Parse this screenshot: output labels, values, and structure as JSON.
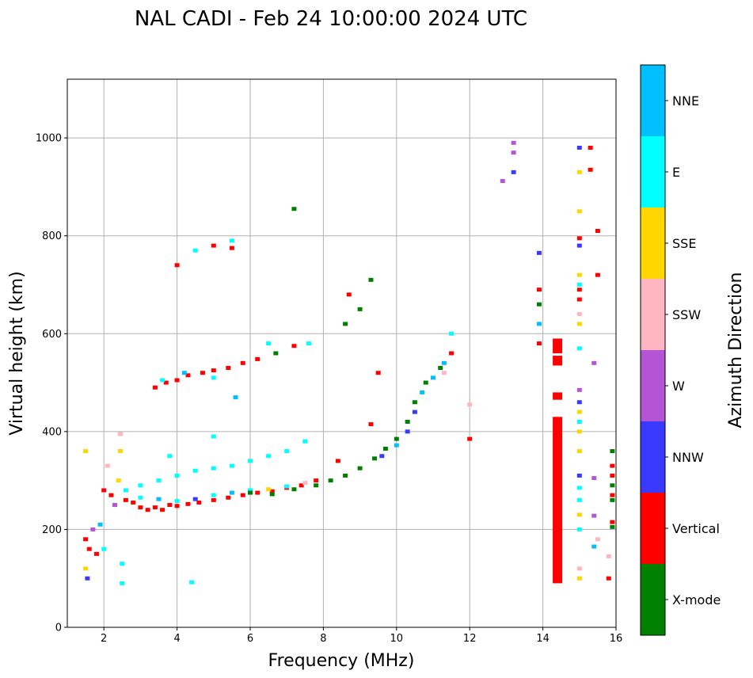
{
  "chart_data": {
    "type": "scatter",
    "title": "NAL CADI - Feb 24 10:00:00 2024 UTC",
    "xlabel": "Frequency (MHz)",
    "ylabel": "Virtual height (km)",
    "xlim": [
      1,
      16
    ],
    "ylim": [
      0,
      1120
    ],
    "xticks": [
      2,
      4,
      6,
      8,
      10,
      12,
      14,
      16
    ],
    "yticks": [
      0,
      200,
      400,
      600,
      800,
      1000
    ],
    "grid": true,
    "colorbar": {
      "label": "Azimuth Direction",
      "categories": [
        {
          "name": "X-mode",
          "color": "#008000"
        },
        {
          "name": "Vertical",
          "color": "#ff0000"
        },
        {
          "name": "NNW",
          "color": "#3a3aff"
        },
        {
          "name": "W",
          "color": "#b455d6"
        },
        {
          "name": "SSW",
          "color": "#ffb6c1"
        },
        {
          "name": "SSE",
          "color": "#ffd700"
        },
        {
          "name": "E",
          "color": "#00ffff"
        },
        {
          "name": "NNE",
          "color": "#00bfff"
        }
      ]
    },
    "points": [
      [
        1.5,
        180,
        "Vertical"
      ],
      [
        1.6,
        160,
        "Vertical"
      ],
      [
        1.5,
        120,
        "SSE"
      ],
      [
        1.5,
        360,
        "SSE"
      ],
      [
        1.55,
        100,
        "NNW"
      ],
      [
        1.7,
        200,
        "W"
      ],
      [
        1.8,
        150,
        "Vertical"
      ],
      [
        1.9,
        210,
        "NNE"
      ],
      [
        2.0,
        160,
        "E"
      ],
      [
        2.0,
        280,
        "Vertical"
      ],
      [
        2.1,
        330,
        "SSW"
      ],
      [
        2.2,
        270,
        "Vertical"
      ],
      [
        2.3,
        250,
        "W"
      ],
      [
        2.4,
        300,
        "SSE"
      ],
      [
        2.45,
        360,
        "SSE"
      ],
      [
        2.45,
        395,
        "SSW"
      ],
      [
        2.5,
        130,
        "E"
      ],
      [
        2.5,
        90,
        "E"
      ],
      [
        2.6,
        260,
        "Vertical"
      ],
      [
        2.8,
        255,
        "Vertical"
      ],
      [
        3.0,
        245,
        "Vertical"
      ],
      [
        3.2,
        240,
        "Vertical"
      ],
      [
        3.4,
        245,
        "Vertical"
      ],
      [
        3.6,
        240,
        "Vertical"
      ],
      [
        3.8,
        250,
        "Vertical"
      ],
      [
        4.0,
        248,
        "Vertical"
      ],
      [
        4.3,
        252,
        "Vertical"
      ],
      [
        4.6,
        255,
        "Vertical"
      ],
      [
        5.0,
        260,
        "Vertical"
      ],
      [
        5.4,
        265,
        "Vertical"
      ],
      [
        5.8,
        270,
        "Vertical"
      ],
      [
        6.2,
        275,
        "Vertical"
      ],
      [
        6.6,
        278,
        "Vertical"
      ],
      [
        7.0,
        285,
        "Vertical"
      ],
      [
        7.4,
        290,
        "Vertical"
      ],
      [
        7.8,
        300,
        "Vertical"
      ],
      [
        8.4,
        340,
        "Vertical"
      ],
      [
        3.0,
        265,
        "E"
      ],
      [
        3.5,
        262,
        "NNE"
      ],
      [
        4.0,
        258,
        "E"
      ],
      [
        4.5,
        262,
        "NNW"
      ],
      [
        5.0,
        270,
        "E"
      ],
      [
        5.5,
        275,
        "NNE"
      ],
      [
        6.0,
        280,
        "E"
      ],
      [
        6.5,
        282,
        "SSE"
      ],
      [
        7.0,
        288,
        "E"
      ],
      [
        7.5,
        295,
        "SSW"
      ],
      [
        6.0,
        275,
        "X-mode"
      ],
      [
        6.6,
        272,
        "X-mode"
      ],
      [
        7.2,
        282,
        "X-mode"
      ],
      [
        7.8,
        290,
        "X-mode"
      ],
      [
        8.2,
        300,
        "X-mode"
      ],
      [
        8.6,
        310,
        "X-mode"
      ],
      [
        9.0,
        325,
        "X-mode"
      ],
      [
        9.4,
        345,
        "X-mode"
      ],
      [
        9.7,
        365,
        "X-mode"
      ],
      [
        10.0,
        385,
        "X-mode"
      ],
      [
        10.3,
        420,
        "X-mode"
      ],
      [
        10.5,
        460,
        "X-mode"
      ],
      [
        10.8,
        500,
        "X-mode"
      ],
      [
        11.2,
        530,
        "X-mode"
      ],
      [
        9.6,
        350,
        "NNW"
      ],
      [
        10.0,
        372,
        "NNE"
      ],
      [
        10.3,
        400,
        "NNW"
      ],
      [
        10.5,
        440,
        "NNW"
      ],
      [
        10.7,
        480,
        "NNE"
      ],
      [
        11.0,
        510,
        "NNE"
      ],
      [
        11.3,
        540,
        "NNE"
      ],
      [
        11.5,
        560,
        "Vertical"
      ],
      [
        11.3,
        520,
        "SSW"
      ],
      [
        11.5,
        600,
        "E"
      ],
      [
        3.4,
        490,
        "Vertical"
      ],
      [
        3.7,
        500,
        "Vertical"
      ],
      [
        4.0,
        505,
        "Vertical"
      ],
      [
        4.3,
        515,
        "Vertical"
      ],
      [
        4.7,
        520,
        "Vertical"
      ],
      [
        5.0,
        525,
        "Vertical"
      ],
      [
        5.4,
        530,
        "Vertical"
      ],
      [
        5.8,
        540,
        "Vertical"
      ],
      [
        6.2,
        548,
        "Vertical"
      ],
      [
        6.7,
        560,
        "X-mode"
      ],
      [
        7.2,
        575,
        "Vertical"
      ],
      [
        7.6,
        580,
        "E"
      ],
      [
        3.6,
        505,
        "E"
      ],
      [
        4.2,
        520,
        "NNE"
      ],
      [
        5.0,
        510,
        "E"
      ],
      [
        6.5,
        580,
        "E"
      ],
      [
        2.6,
        280,
        "E"
      ],
      [
        3.0,
        290,
        "E"
      ],
      [
        3.5,
        300,
        "E"
      ],
      [
        4.0,
        310,
        "E"
      ],
      [
        4.5,
        320,
        "E"
      ],
      [
        5.0,
        325,
        "E"
      ],
      [
        5.5,
        330,
        "E"
      ],
      [
        6.0,
        340,
        "E"
      ],
      [
        6.5,
        350,
        "E"
      ],
      [
        7.0,
        360,
        "E"
      ],
      [
        7.5,
        380,
        "E"
      ],
      [
        3.8,
        350,
        "E"
      ],
      [
        5.0,
        390,
        "E"
      ],
      [
        4.5,
        770,
        "E"
      ],
      [
        5.0,
        780,
        "Vertical"
      ],
      [
        5.5,
        790,
        "E"
      ],
      [
        5.5,
        775,
        "Vertical"
      ],
      [
        4.0,
        740,
        "Vertical"
      ],
      [
        7.2,
        855,
        "X-mode"
      ],
      [
        8.6,
        620,
        "X-mode"
      ],
      [
        8.7,
        680,
        "Vertical"
      ],
      [
        9.0,
        650,
        "X-mode"
      ],
      [
        9.3,
        710,
        "X-mode"
      ],
      [
        9.5,
        520,
        "Vertical"
      ],
      [
        9.3,
        415,
        "Vertical"
      ],
      [
        12.0,
        385,
        "Vertical"
      ],
      [
        12.0,
        455,
        "SSW"
      ],
      [
        4.4,
        92,
        "E"
      ],
      [
        5.6,
        470,
        "NNE"
      ],
      [
        12.9,
        912,
        "W"
      ],
      [
        13.2,
        930,
        "NNW"
      ],
      [
        13.2,
        970,
        "W"
      ],
      [
        13.2,
        990,
        "W"
      ],
      [
        13.9,
        765,
        "NNW"
      ],
      [
        13.9,
        690,
        "Vertical"
      ],
      [
        13.9,
        660,
        "X-mode"
      ],
      [
        13.9,
        620,
        "NNE"
      ],
      [
        13.9,
        580,
        "Vertical"
      ],
      [
        15.0,
        980,
        "NNW"
      ],
      [
        15.3,
        980,
        "Vertical"
      ],
      [
        15.3,
        935,
        "Vertical"
      ],
      [
        15.0,
        930,
        "SSE"
      ],
      [
        15.0,
        850,
        "SSE"
      ],
      [
        15.5,
        810,
        "Vertical"
      ],
      [
        15.0,
        795,
        "Vertical"
      ],
      [
        15.0,
        780,
        "NNW"
      ],
      [
        15.0,
        720,
        "SSE"
      ],
      [
        15.5,
        720,
        "Vertical"
      ],
      [
        15.0,
        700,
        "E"
      ],
      [
        15.0,
        690,
        "Vertical"
      ],
      [
        15.0,
        670,
        "Vertical"
      ],
      [
        15.0,
        640,
        "SSW"
      ],
      [
        15.0,
        620,
        "SSE"
      ],
      [
        15.0,
        570,
        "E"
      ],
      [
        15.4,
        540,
        "W"
      ],
      [
        15.0,
        485,
        "W"
      ],
      [
        15.0,
        460,
        "NNW"
      ],
      [
        15.0,
        440,
        "SSE"
      ],
      [
        15.0,
        420,
        "E"
      ],
      [
        15.0,
        400,
        "SSE"
      ],
      [
        15.0,
        360,
        "SSE"
      ],
      [
        15.0,
        310,
        "NNW"
      ],
      [
        15.4,
        305,
        "W"
      ],
      [
        15.0,
        285,
        "E"
      ],
      [
        15.0,
        260,
        "E"
      ],
      [
        15.0,
        230,
        "SSE"
      ],
      [
        15.4,
        228,
        "W"
      ],
      [
        15.0,
        200,
        "E"
      ],
      [
        15.5,
        180,
        "SSW"
      ],
      [
        15.4,
        165,
        "NNE"
      ],
      [
        15.0,
        120,
        "SSW"
      ],
      [
        15.0,
        100,
        "SSE"
      ],
      [
        15.8,
        100,
        "Vertical"
      ],
      [
        15.8,
        145,
        "SSW"
      ],
      [
        15.9,
        360,
        "X-mode"
      ],
      [
        15.9,
        330,
        "Vertical"
      ],
      [
        15.9,
        310,
        "Vertical"
      ],
      [
        15.9,
        290,
        "X-mode"
      ],
      [
        15.9,
        270,
        "Vertical"
      ],
      [
        15.9,
        260,
        "X-mode"
      ],
      [
        15.9,
        215,
        "Vertical"
      ],
      [
        15.9,
        205,
        "X-mode"
      ]
    ],
    "bars": [
      {
        "freq": 14.4,
        "from": 90,
        "to": 430,
        "direction": "Vertical"
      },
      {
        "freq": 14.4,
        "from": 465,
        "to": 480,
        "direction": "Vertical"
      },
      {
        "freq": 14.4,
        "from": 535,
        "to": 555,
        "direction": "Vertical"
      },
      {
        "freq": 14.4,
        "from": 560,
        "to": 590,
        "direction": "Vertical"
      }
    ]
  }
}
